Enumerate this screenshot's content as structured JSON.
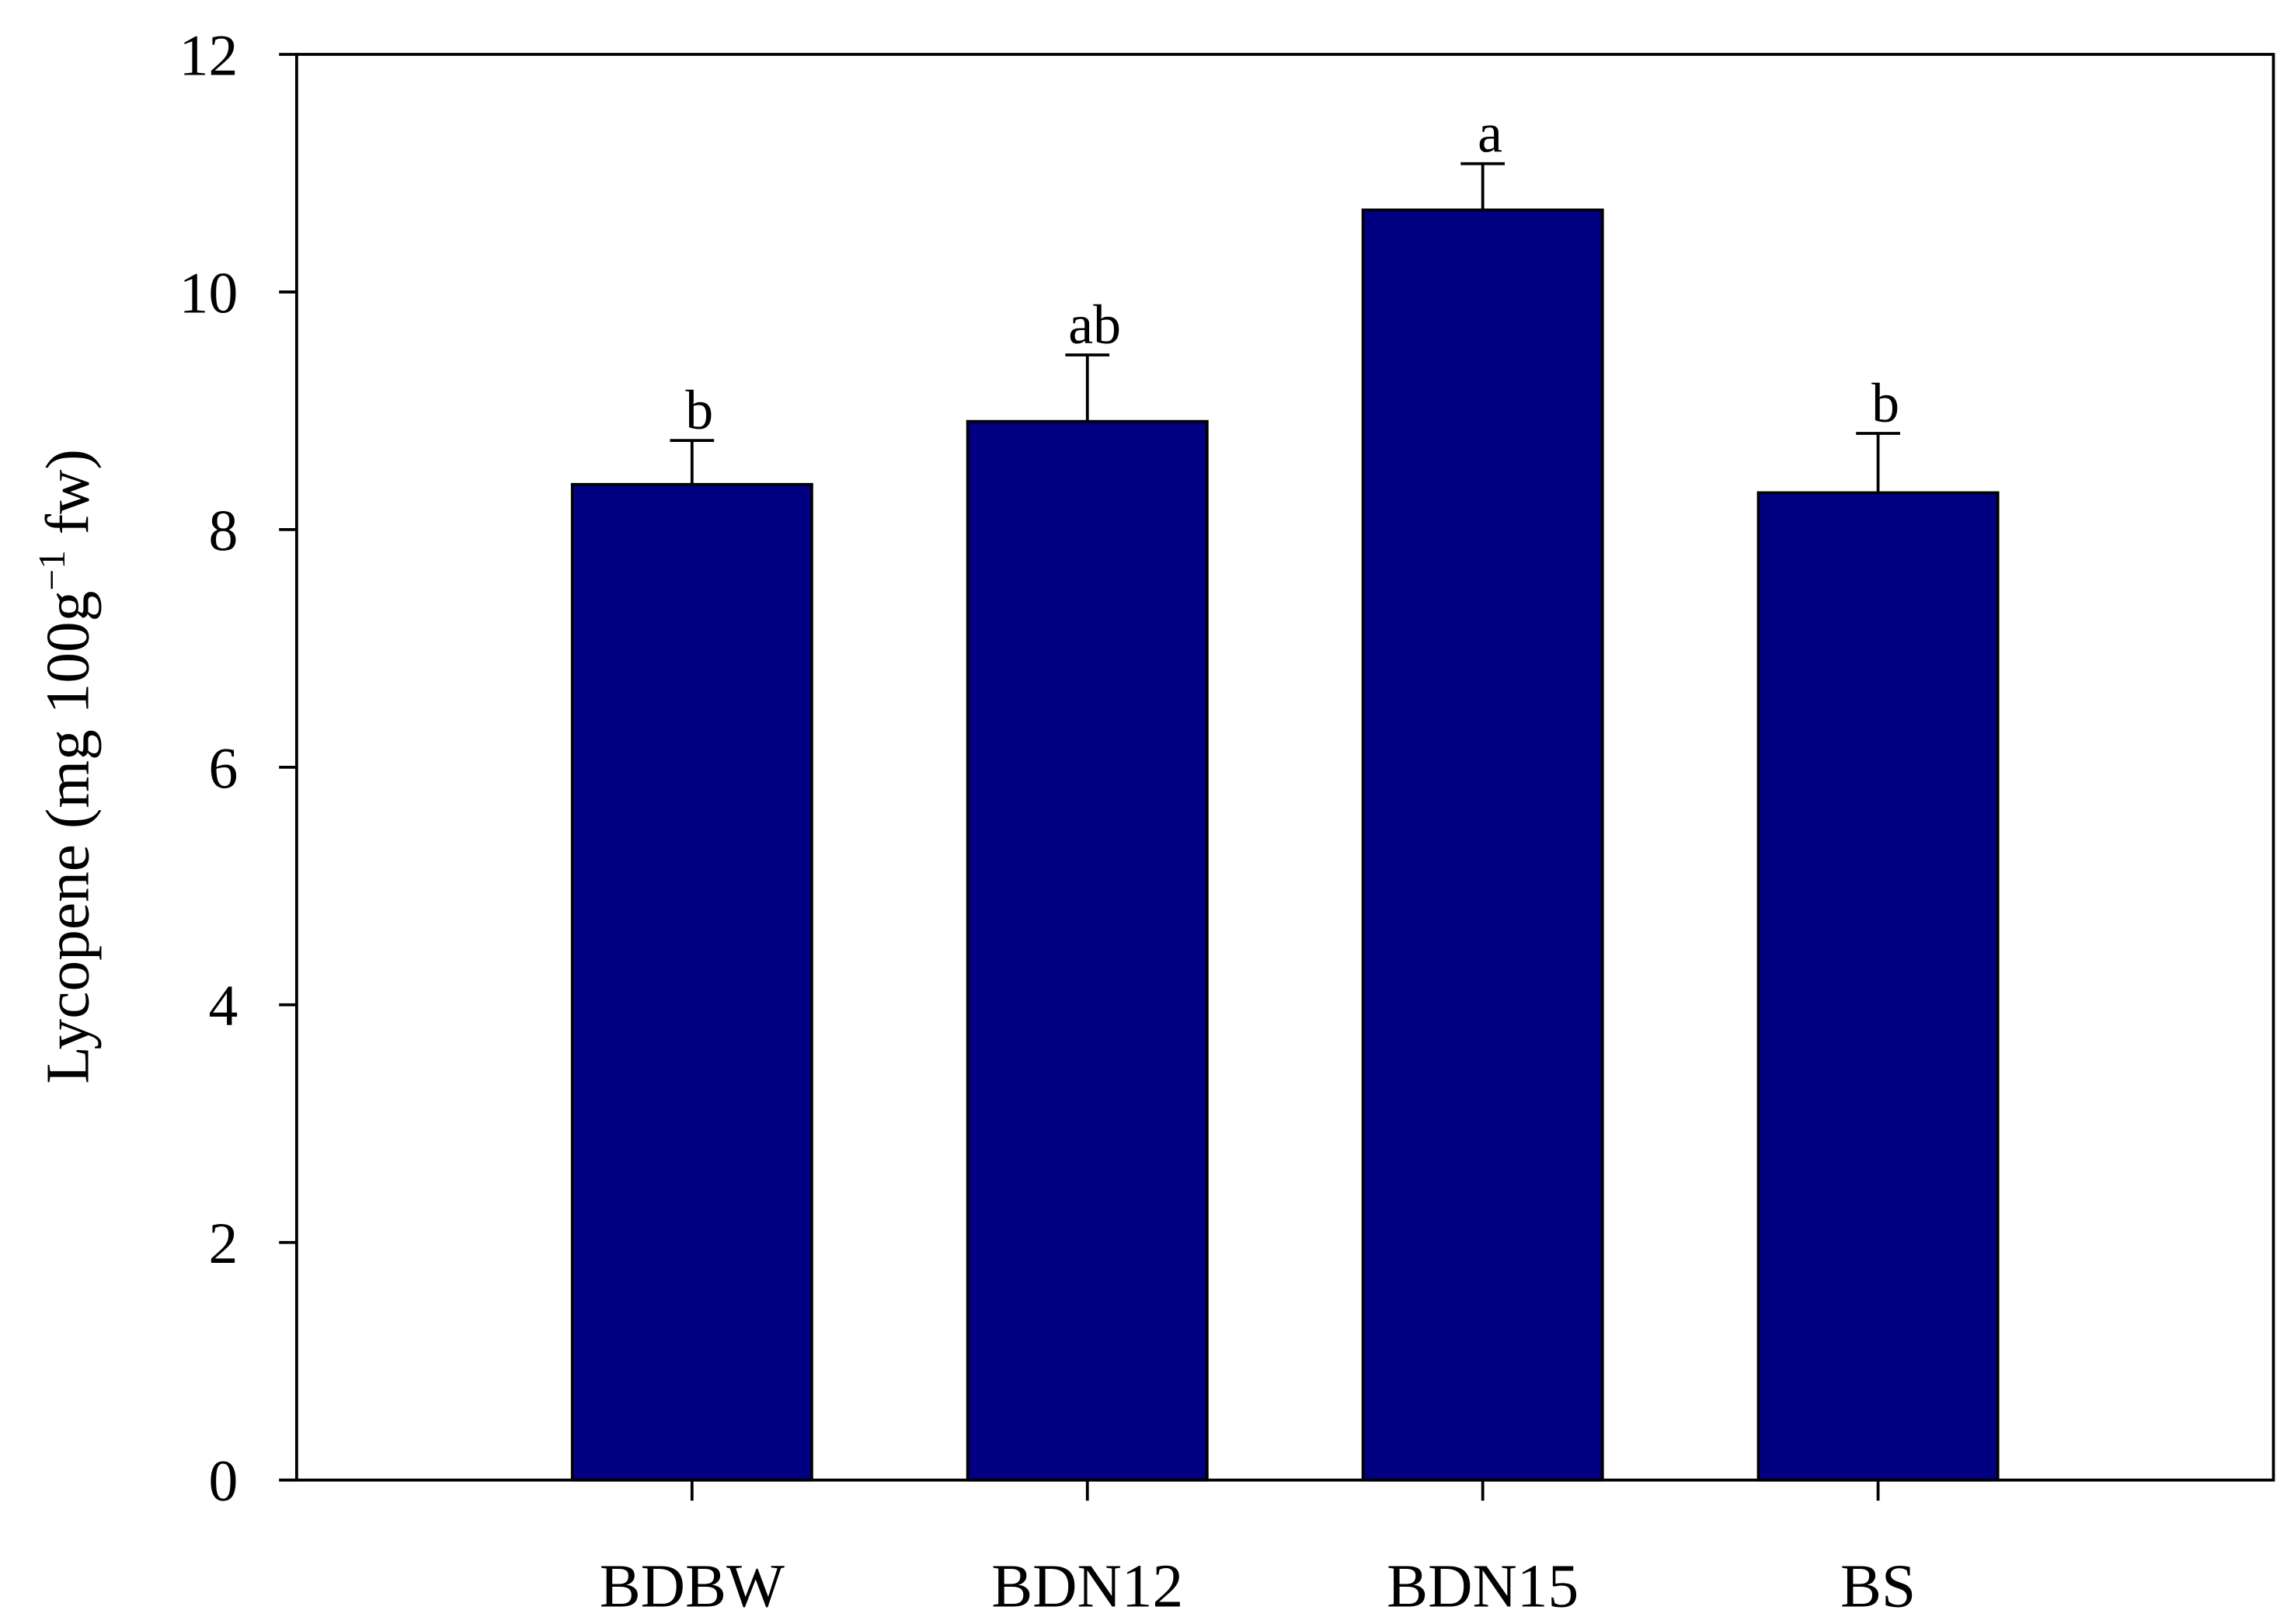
{
  "chart_data": {
    "type": "bar",
    "ylabel": [
      "Lycopene (mg 100g",
      "−1",
      " fw)"
    ],
    "categories": [
      "BDBW",
      "BDN12",
      "BDN15",
      "BS"
    ],
    "values": [
      8.38,
      8.91,
      10.69,
      8.31
    ],
    "errors": [
      0.37,
      0.56,
      0.39,
      0.5
    ],
    "annotations": [
      "b",
      "ab",
      "a",
      "b"
    ],
    "color": "#000080",
    "ylim": [
      0,
      12
    ],
    "yticks": [
      0,
      2,
      4,
      6,
      8,
      10,
      12
    ],
    "grid": false
  }
}
